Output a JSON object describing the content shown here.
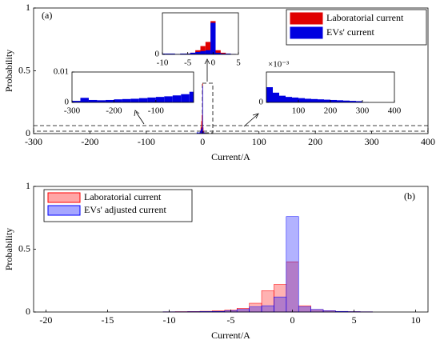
{
  "chart_data": [
    {
      "type": "bar",
      "annotation": "(a)",
      "xlabel": "Current/A",
      "ylabel": "Probability",
      "xlim": [
        -300,
        400
      ],
      "xticks": [
        -300,
        -200,
        -100,
        0,
        100,
        200,
        300,
        400
      ],
      "ylim": [
        0,
        1
      ],
      "yticks": [
        0,
        0.5,
        1
      ],
      "x": [
        -10,
        -9,
        -8,
        -7,
        -6,
        -5,
        -4,
        -3,
        -2,
        -1,
        0,
        1,
        2,
        3,
        4,
        5
      ],
      "series": [
        {
          "name": "Laboratorial current",
          "color": "#e00000",
          "values": [
            0,
            0,
            0,
            0,
            0.005,
            0.01,
            0.02,
            0.05,
            0.1,
            0.15,
            0.4,
            0.05,
            0.02,
            0.01,
            0.005,
            0
          ]
        },
        {
          "name": "EVs' current",
          "color": "#0000e0",
          "values": [
            0.01,
            0.01,
            0.01,
            0.005,
            0.01,
            0.01,
            0.02,
            0.03,
            0.04,
            0.05,
            0.38,
            0.02,
            0.01,
            0.01,
            0.005,
            0
          ]
        }
      ],
      "insets": [
        {
          "xlim": [
            -10,
            5
          ],
          "xticks": [
            -10,
            -5,
            0,
            5
          ],
          "ylim": [
            0,
            0.5
          ],
          "yticks": [
            0
          ],
          "series_ref": "both"
        },
        {
          "xlim": [
            -300,
            -10
          ],
          "xticks": [
            -300,
            -200,
            -100
          ],
          "ylim": [
            0,
            0.01
          ],
          "yticks": [
            0,
            0.01
          ],
          "x": [
            -290,
            -270,
            -250,
            -230,
            -210,
            -190,
            -170,
            -150,
            -130,
            -110,
            -90,
            -70,
            -50,
            -30,
            -10
          ],
          "values": [
            0.0005,
            0.0015,
            0.0008,
            0.0007,
            0.0008,
            0.001,
            0.0011,
            0.0012,
            0.0014,
            0.0016,
            0.0018,
            0.002,
            0.0023,
            0.0027,
            0.0035
          ]
        },
        {
          "xlim": [
            0,
            400
          ],
          "xticks": [
            100,
            200,
            300,
            400
          ],
          "ylim": [
            0,
            5
          ],
          "yticks": [
            0
          ],
          "annotation": "×10⁻³",
          "x": [
            10,
            30,
            50,
            70,
            90,
            110,
            130,
            150,
            170,
            190,
            210,
            230,
            250,
            270,
            290,
            310,
            330,
            350,
            370,
            390
          ],
          "values": [
            2.5,
            1.6,
            1.1,
            0.9,
            0.8,
            0.7,
            0.6,
            0.55,
            0.5,
            0.45,
            0.4,
            0.35,
            0.3,
            0.25,
            0.2,
            0.05,
            0,
            0,
            0,
            0
          ]
        }
      ]
    },
    {
      "type": "bar",
      "annotation": "(b)",
      "xlabel": "Current/A",
      "ylabel": "Probability",
      "xlim": [
        -21,
        11
      ],
      "xticks": [
        -20,
        -15,
        -10,
        -5,
        0,
        5,
        10
      ],
      "ylim": [
        0,
        1
      ],
      "yticks": [
        0,
        0.5,
        1
      ],
      "x": [
        -10,
        -9,
        -8,
        -7,
        -6,
        -5,
        -4,
        -3,
        -2,
        -1,
        0,
        1,
        2,
        3,
        4,
        5,
        6
      ],
      "series": [
        {
          "name": "Laboratorial current",
          "color": "#ff0000",
          "values": [
            0.002,
            0.003,
            0.004,
            0.006,
            0.01,
            0.015,
            0.03,
            0.07,
            0.17,
            0.22,
            0.4,
            0.05,
            0.02,
            0.01,
            0.005,
            0.003,
            0.002
          ]
        },
        {
          "name": "EVs' adjusted current",
          "color": "#0000ff",
          "values": [
            0.002,
            0.002,
            0.003,
            0.004,
            0.005,
            0.01,
            0.02,
            0.04,
            0.05,
            0.12,
            0.76,
            0.04,
            0.02,
            0.01,
            0.005,
            0.003,
            0.002
          ]
        }
      ]
    }
  ]
}
